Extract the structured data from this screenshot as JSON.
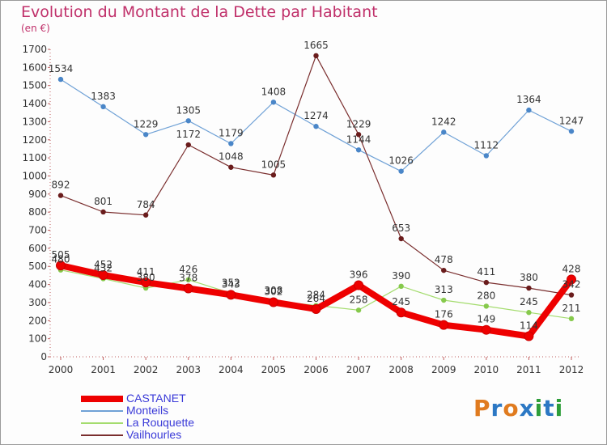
{
  "header": {
    "title": "Evolution du Montant de la Dette par Habitant",
    "subtitle": "(en €)"
  },
  "brand": {
    "letters": [
      {
        "ch": "P",
        "color": "#e07b1f"
      },
      {
        "ch": "r",
        "color": "#2c78c4"
      },
      {
        "ch": "o",
        "color": "#e07b1f"
      },
      {
        "ch": "x",
        "color": "#2c78c4"
      },
      {
        "ch": "i",
        "color": "#2e9e3a"
      },
      {
        "ch": "t",
        "color": "#2c78c4"
      },
      {
        "ch": "i",
        "color": "#2e9e3a"
      }
    ]
  },
  "chart_data": {
    "type": "line",
    "title": "Evolution du Montant de la Dette par Habitant",
    "subtitle": "(en €)",
    "xlabel": "",
    "ylabel": "",
    "ylim": [
      0,
      1700
    ],
    "yticks": [
      0,
      100,
      200,
      300,
      400,
      500,
      600,
      700,
      800,
      900,
      1000,
      1100,
      1200,
      1300,
      1400,
      1500,
      1600,
      1700
    ],
    "categories": [
      "2000",
      "2001",
      "2002",
      "2003",
      "2004",
      "2005",
      "2006",
      "2007",
      "2008",
      "2009",
      "2010",
      "2011",
      "2012"
    ],
    "grid": false,
    "legend_position": "bottom-left",
    "series": [
      {
        "name": "CASTANET",
        "values": [
          505,
          452,
          411,
          378,
          343,
          302,
          264,
          396,
          245,
          176,
          149,
          114,
          428
        ],
        "color": "#ee0000",
        "width": 8,
        "marker": "#ee0000"
      },
      {
        "name": "Monteils",
        "values": [
          1534,
          1383,
          1229,
          1305,
          1179,
          1408,
          1274,
          1144,
          1026,
          1242,
          1112,
          1364,
          1247
        ],
        "color": "#6fa1d6",
        "width": 1.2,
        "marker": "#4a86c8"
      },
      {
        "name": "La Rouquette",
        "values": [
          480,
          432,
          380,
          426,
          352,
          308,
          284,
          258,
          390,
          313,
          280,
          245,
          211
        ],
        "color": "#a4dc6e",
        "width": 1.2,
        "marker": "#86c94c"
      },
      {
        "name": "Vailhourles",
        "values": [
          892,
          801,
          784,
          1172,
          1048,
          1005,
          1665,
          1229,
          653,
          478,
          411,
          380,
          342
        ],
        "color": "#7a2e2e",
        "width": 1.2,
        "marker": "#6a1c1c"
      }
    ]
  }
}
